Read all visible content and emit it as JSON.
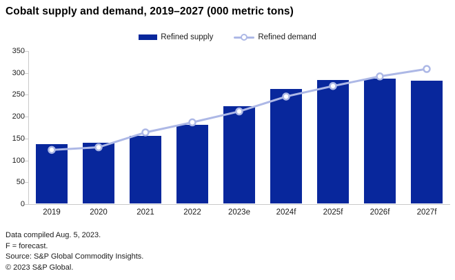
{
  "title": "Cobalt supply and demand, 2019–2027 (000 metric tons)",
  "legend": {
    "supply_label": "Refined supply",
    "demand_label": "Refined demand"
  },
  "colors": {
    "bar": "#08279c",
    "line": "#adb8e6",
    "marker_fill": "#ffffff",
    "axis": "#c9c9c9",
    "text": "#1a1a1a"
  },
  "chart_data": {
    "type": "bar",
    "subtype": "bar-with-line-overlay",
    "title": "Cobalt supply and demand, 2019–2027 (000 metric tons)",
    "categories": [
      "2019",
      "2020",
      "2021",
      "2022",
      "2023e",
      "2024f",
      "2025f",
      "2026f",
      "2027f"
    ],
    "series": [
      {
        "name": "Refined supply",
        "type": "bar",
        "values": [
          136,
          138,
          154,
          179,
          223,
          262,
          283,
          285,
          281
        ]
      },
      {
        "name": "Refined demand",
        "type": "line",
        "values": [
          124,
          130,
          164,
          187,
          212,
          246,
          270,
          292,
          309
        ]
      }
    ],
    "xlabel": "",
    "ylabel": "",
    "ylim": [
      0,
      350
    ],
    "ytick_step": 50,
    "yticks": [
      0,
      50,
      100,
      150,
      200,
      250,
      300,
      350
    ],
    "grid": false,
    "legend_position": "top-center"
  },
  "footer": {
    "line1": "Data compiled Aug. 5, 2023.",
    "line2": "F = forecast.",
    "line3": "Source: S&P Global Commodity Insights.",
    "line4": "© 2023 S&P Global."
  }
}
